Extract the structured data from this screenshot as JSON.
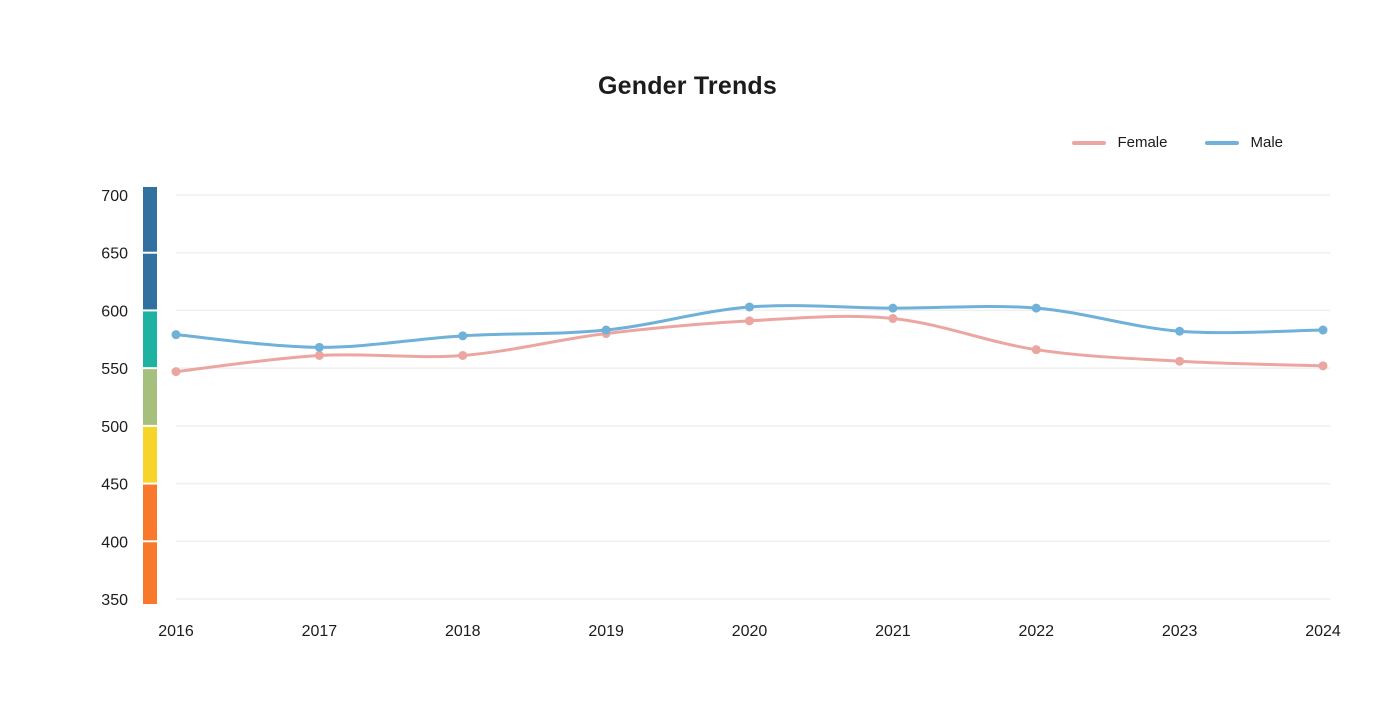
{
  "chart_data": {
    "type": "line",
    "title": "Gender Trends",
    "categories": [
      "2016",
      "2017",
      "2018",
      "2019",
      "2020",
      "2021",
      "2022",
      "2023",
      "2024"
    ],
    "series": [
      {
        "name": "Female",
        "color": "#eca6a1",
        "values": [
          547,
          561,
          561,
          580,
          591,
          593,
          566,
          556,
          552
        ]
      },
      {
        "name": "Male",
        "color": "#6fb1d9",
        "values": [
          579,
          568,
          578,
          583,
          603,
          602,
          602,
          582,
          583
        ]
      }
    ],
    "xlabel": "",
    "ylabel": "",
    "ylim": [
      350,
      700
    ],
    "y_ticks": [
      700,
      650,
      600,
      550,
      500,
      450,
      400,
      350
    ],
    "grid": "horizontal",
    "grid_color": "#efefef",
    "text_color": "#1c1c1c",
    "legend_position": "top-right",
    "marker": "circle",
    "axis_bar_segments": [
      {
        "from": 650,
        "to": 700,
        "color": "#31709f"
      },
      {
        "from": 600,
        "to": 650,
        "color": "#31709f"
      },
      {
        "from": 550,
        "to": 600,
        "color": "#1eb3a1"
      },
      {
        "from": 500,
        "to": 550,
        "color": "#a5bf7d"
      },
      {
        "from": 450,
        "to": 500,
        "color": "#f6d42a"
      },
      {
        "from": 400,
        "to": 450,
        "color": "#f8792b"
      },
      {
        "from": 350,
        "to": 400,
        "color": "#f8792b"
      }
    ]
  }
}
